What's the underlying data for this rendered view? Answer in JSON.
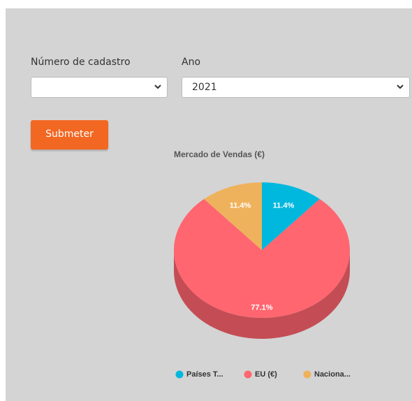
{
  "form": {
    "fields": [
      {
        "label": "Número de cadastro",
        "value": null
      },
      {
        "label": "Ano",
        "value": "2021"
      }
    ],
    "button": "Submeter"
  },
  "chart_data": {
    "type": "pie",
    "title": "Mercado de Vendas (€)",
    "categories": [
      "Países T...",
      "EU (€)",
      "Naciona..."
    ],
    "values": [
      11.4,
      77.1,
      11.4
    ],
    "value_labels": [
      "11.4%",
      "77.1%",
      "11.4%"
    ],
    "colors": [
      "#00b8de",
      "#ff6670",
      "#efb25c"
    ],
    "side_colors": [
      "#0090ad",
      "#c44d55",
      "#b98a46"
    ],
    "legend": "bottom"
  }
}
